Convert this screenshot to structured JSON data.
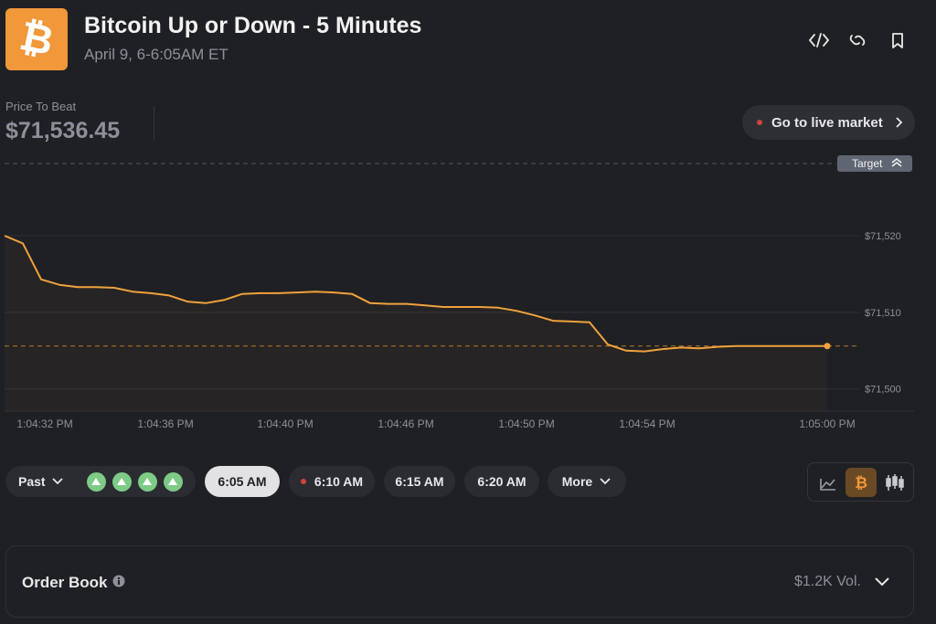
{
  "header": {
    "icon_glyph": "₿",
    "title": "Bitcoin Up or Down - 5 Minutes",
    "subtitle": "April 9, 6-6:05AM ET"
  },
  "price_to_beat": {
    "label": "Price To Beat",
    "value": "$71,536.45"
  },
  "live_button": "Go to live market",
  "chart_data": {
    "type": "line",
    "target_label": "Target",
    "x_labels": [
      "1:04:32 PM",
      "1:04:36 PM",
      "1:04:40 PM",
      "1:04:46 PM",
      "1:04:50 PM",
      "1:04:54 PM",
      "1:05:00 PM"
    ],
    "series": [
      {
        "name": "BTC",
        "color": "#f0a23c",
        "values": [
          71520,
          71519,
          71514.3,
          71513.6,
          71513.3,
          71513.3,
          71513.2,
          71512.7,
          71512.5,
          71512.2,
          71511.4,
          71511.2,
          71511.6,
          71512.4,
          71512.5,
          71512.5,
          71512.6,
          71512.7,
          71512.6,
          71512.4,
          71511.2,
          71511.1,
          71511.1,
          71510.9,
          71510.7,
          71510.7,
          71510.7,
          71510.6,
          71510.2,
          71509.6,
          71508.9,
          71508.8,
          71508.7,
          71505.8,
          71505,
          71504.9,
          71505.2,
          71505.4,
          71505.3,
          71505.5,
          71505.6,
          71505.6,
          71505.6,
          71505.6,
          71505.6,
          71505.6
        ]
      }
    ],
    "ylim": [
      71497.1,
      71530.5
    ],
    "yticks": [
      {
        "value": 71500,
        "label": "$71,500"
      },
      {
        "value": 71510,
        "label": "$71,510"
      },
      {
        "value": 71520,
        "label": "$71,520"
      }
    ],
    "grid": true
  },
  "tabs": [
    "Past",
    "6:05 AM",
    "6:10 AM",
    "6:15 AM",
    "6:20 AM",
    "More"
  ],
  "order_book": {
    "title": "Order Book",
    "volume": "$1.2K Vol."
  }
}
